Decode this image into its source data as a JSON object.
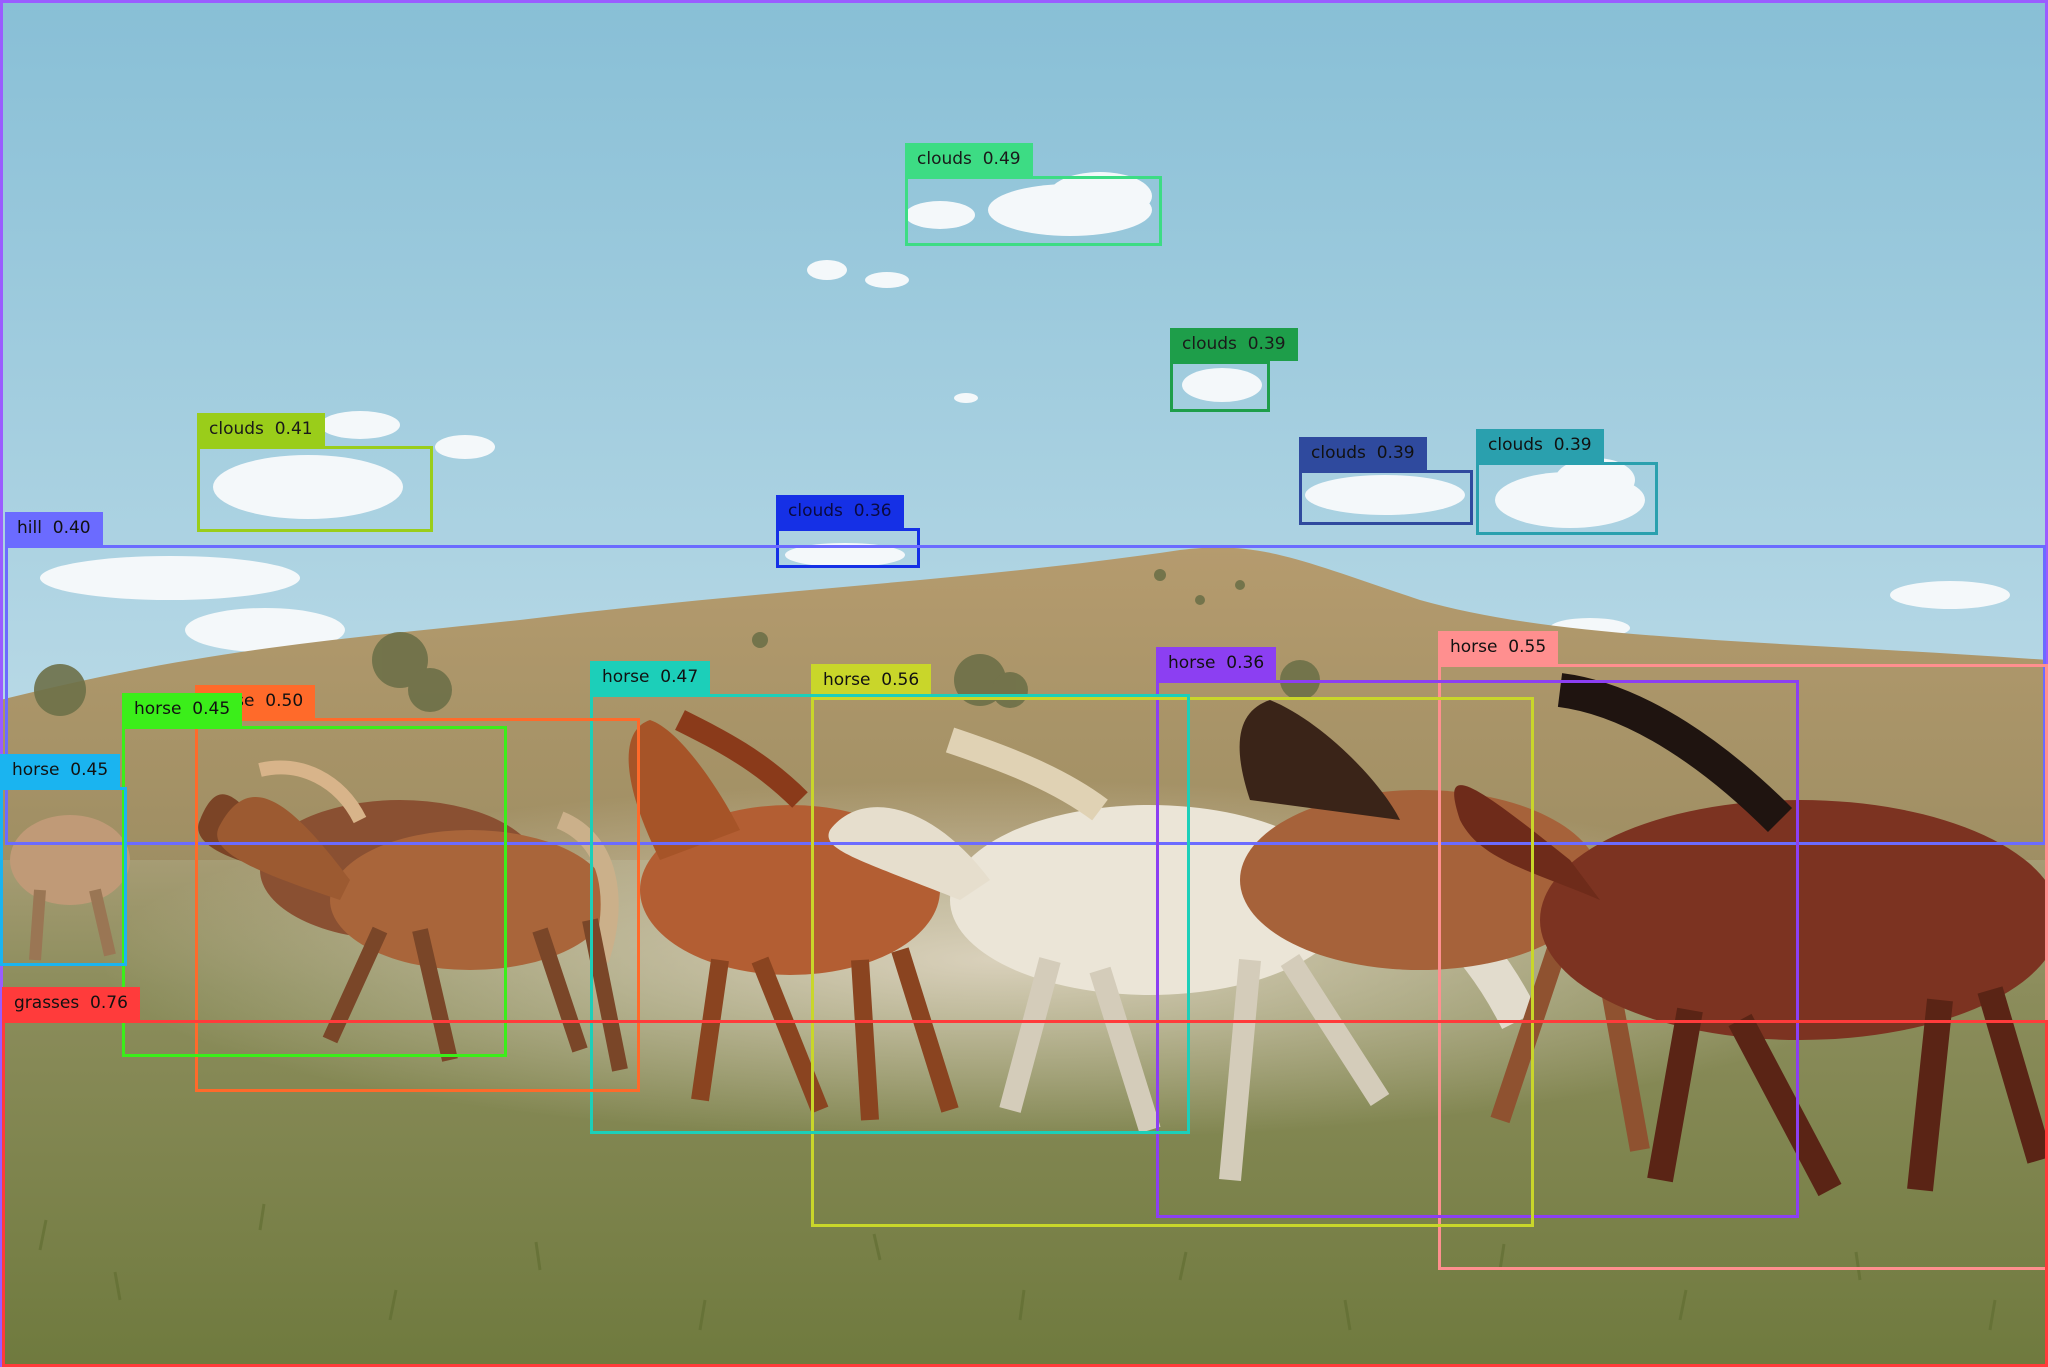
{
  "image": {
    "subject": "horses running across a grassy field below a hill"
  },
  "detections": [
    {
      "label": "clouds",
      "score": "0.49",
      "color": "#3ddc84",
      "text_color": "#1a1a1a"
    },
    {
      "label": "clouds",
      "score": "0.39",
      "color": "#1e9e4a",
      "text_color": "#1a1a1a"
    },
    {
      "label": "clouds",
      "score": "0.41",
      "color": "#9acd1a",
      "text_color": "#1a1a1a"
    },
    {
      "label": "clouds",
      "score": "0.39",
      "color": "#2f4a9e",
      "text_color": "#111111"
    },
    {
      "label": "clouds",
      "score": "0.39",
      "color": "#2aa0ae",
      "text_color": "#111111"
    },
    {
      "label": "clouds",
      "score": "0.36",
      "color": "#1530e6",
      "text_color": "#0a0a40"
    },
    {
      "label": "hill",
      "score": "0.40",
      "color": "#6b6bff",
      "text_color": "#111111"
    },
    {
      "label": "horse",
      "score": "0.55",
      "color": "#ff8f8f",
      "text_color": "#111111"
    },
    {
      "label": "horse",
      "score": "0.36",
      "color": "#8c3ff2",
      "text_color": "#111111"
    },
    {
      "label": "horse",
      "score": "0.56",
      "color": "#c9d62a",
      "text_color": "#111111"
    },
    {
      "label": "horse",
      "score": "0.47",
      "color": "#1ccfb9",
      "text_color": "#111111"
    },
    {
      "label": "horse",
      "score": "0.50",
      "color": "#ff6a2a",
      "text_color": "#111111"
    },
    {
      "label": "horse",
      "score": "0.45",
      "color": "#3bee1a",
      "text_color": "#111111"
    },
    {
      "label": "horse",
      "score": "0.45",
      "color": "#1ab4f0",
      "text_color": "#111111"
    },
    {
      "label": "grasses",
      "score": "0.76",
      "color": "#ff3b3b",
      "text_color": "#111111"
    }
  ],
  "image_border_color": "#9a5cff"
}
